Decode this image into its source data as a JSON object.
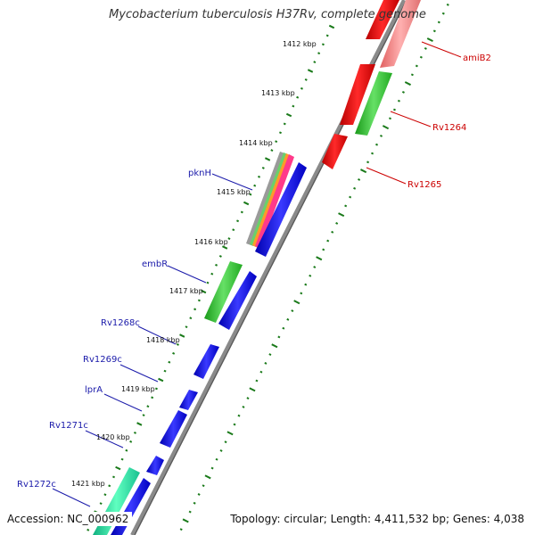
{
  "title": "Mycobacterium tuberculosis H37Rv, complete genome",
  "footer": {
    "accession": "Accession: NC_000962",
    "topology": "Topology: circular; Length: 4,411,532 bp; Genes: 4,038"
  },
  "colors": {
    "forward_label": "#cc0000",
    "reverse_label": "#1a1aaa",
    "tick": "#1a7a1a",
    "backbone": "#8a8a8a"
  },
  "kbp_labels": [
    "1412 kbp",
    "1413 kbp",
    "1414 kbp",
    "1415 kbp",
    "1416 kbp",
    "1417 kbp",
    "1418 kbp",
    "1419 kbp",
    "1420 kbp",
    "1421 kbp"
  ],
  "gene_labels": {
    "forward": [
      "amiB2",
      "Rv1264",
      "Rv1265"
    ],
    "reverse": [
      "pknH",
      "embR",
      "Rv1268c",
      "Rv1269c",
      "lprA",
      "Rv1271c",
      "Rv1272c"
    ]
  }
}
